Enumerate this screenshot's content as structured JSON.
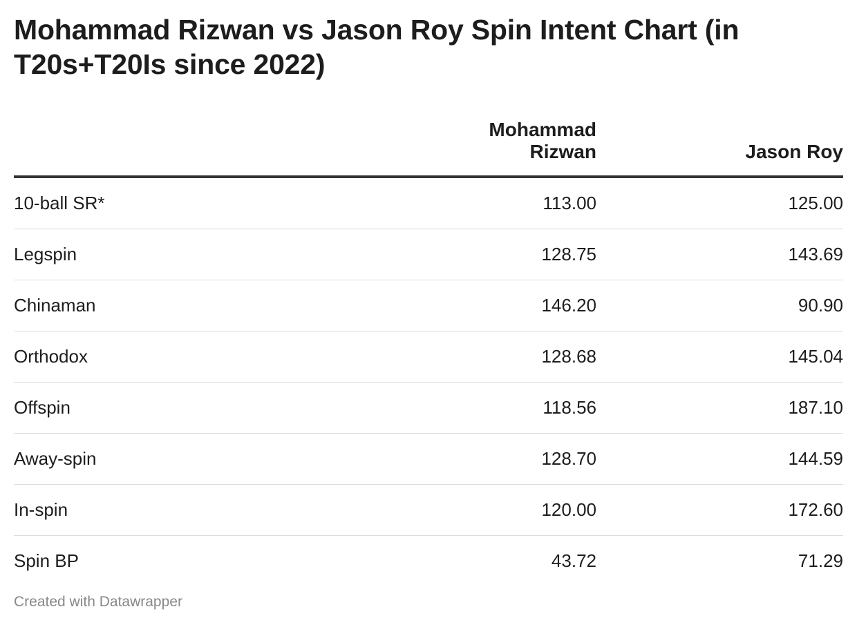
{
  "title": "Mohammad Rizwan vs Jason Roy Spin Intent Chart (in T20s+T20Is since 2022)",
  "footer": "Created with Datawrapper",
  "chart_data": {
    "type": "table",
    "columns": [
      "",
      "Mohammad Rizwan",
      "Jason Roy"
    ],
    "rows": [
      {
        "label": "10-ball SR*",
        "values": [
          "113.00",
          "125.00"
        ]
      },
      {
        "label": "Legspin",
        "values": [
          "128.75",
          "143.69"
        ]
      },
      {
        "label": "Chinaman",
        "values": [
          "146.20",
          "90.90"
        ]
      },
      {
        "label": "Orthodox",
        "values": [
          "128.68",
          "145.04"
        ]
      },
      {
        "label": "Offspin",
        "values": [
          "118.56",
          "187.10"
        ]
      },
      {
        "label": "Away-spin",
        "values": [
          "128.70",
          "144.59"
        ]
      },
      {
        "label": "In-spin",
        "values": [
          "120.00",
          "172.60"
        ]
      },
      {
        "label": "Spin BP",
        "values": [
          "43.72",
          "71.29"
        ]
      }
    ]
  }
}
